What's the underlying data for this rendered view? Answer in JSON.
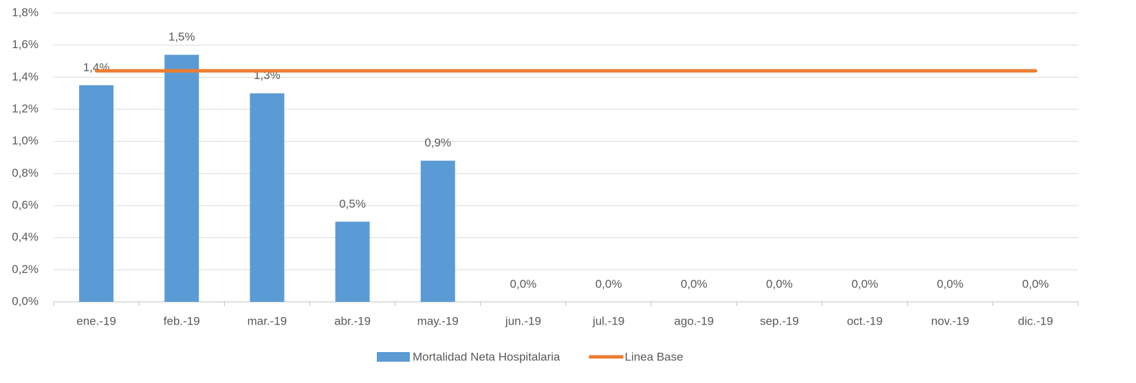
{
  "chart_data": {
    "type": "bar",
    "categories": [
      "ene.-19",
      "feb.-19",
      "mar.-19",
      "abr.-19",
      "may.-19",
      "jun.-19",
      "jul.-19",
      "ago.-19",
      "sep.-19",
      "oct.-19",
      "nov.-19",
      "dic.-19"
    ],
    "series": [
      {
        "name": "Mortalidad Neta Hospitalaria",
        "type": "bar",
        "color": "#5b9bd5",
        "values": [
          1.35,
          1.54,
          1.3,
          0.5,
          0.88,
          0,
          0,
          0,
          0,
          0,
          0,
          0
        ],
        "value_labels": [
          "1,4%",
          "1,5%",
          "1,3%",
          "0,5%",
          "0,9%",
          "0,0%",
          "0,0%",
          "0,0%",
          "0,0%",
          "0,0%",
          "0,0%",
          "0,0%"
        ]
      },
      {
        "name": "Linea Base",
        "type": "line",
        "color": "#ed7d31",
        "values": [
          1.44,
          1.44,
          1.44,
          1.44,
          1.44,
          1.44,
          1.44,
          1.44,
          1.44,
          1.44,
          1.44,
          1.44
        ]
      }
    ],
    "ylim": [
      0,
      1.8
    ],
    "yticks": [
      {
        "value": 0,
        "label": "0,0%"
      },
      {
        "value": 0.2,
        "label": "0,2%"
      },
      {
        "value": 0.4,
        "label": "0,4%"
      },
      {
        "value": 0.6,
        "label": "0,6%"
      },
      {
        "value": 0.8,
        "label": "0,8%"
      },
      {
        "value": 1.0,
        "label": "1,0%"
      },
      {
        "value": 1.2,
        "label": "1,2%"
      },
      {
        "value": 1.4,
        "label": "1,4%"
      },
      {
        "value": 1.6,
        "label": "1,6%"
      },
      {
        "value": 1.8,
        "label": "1,8%"
      }
    ],
    "grid": true,
    "legend": "bottom"
  }
}
